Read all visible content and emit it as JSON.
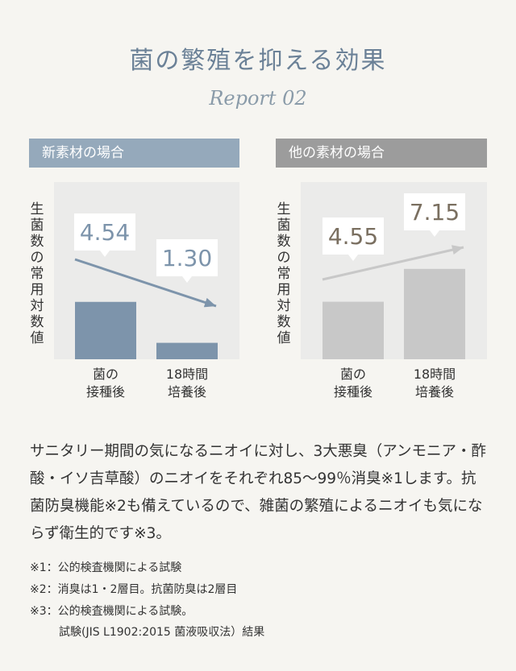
{
  "title": "菌の繁殖を抑える効果",
  "subtitle": "Report 02",
  "chart_data": [
    {
      "type": "bar",
      "title": "新素材の場合",
      "ylabel": "生菌数の常用対数値",
      "categories": [
        "菌の\n接種後",
        "18時間\n培養後"
      ],
      "values": [
        4.54,
        1.3
      ],
      "data_labels": [
        "4.54",
        "1.30"
      ],
      "color": "#7d94ab",
      "trend": "down"
    },
    {
      "type": "bar",
      "title": "他の素材の場合",
      "ylabel": "生菌数の常用対数値",
      "categories": [
        "菌の\n接種後",
        "18時間\n培養後"
      ],
      "values": [
        4.55,
        7.15
      ],
      "data_labels": [
        "4.55",
        "7.15"
      ],
      "color": "#c8c8c8",
      "trend": "up"
    }
  ],
  "xlabels": {
    "left": [
      "菌の",
      "接種後"
    ],
    "right": [
      "18時間",
      "培養後"
    ]
  },
  "body": "サニタリー期間の気になるニオイに対し、3大悪臭（アンモニア・酢酸・イソ吉草酸）のニオイをそれぞれ85〜99％消臭※1します。抗菌防臭機能※2も備えているので、雑菌の繁殖によるニオイも気にならず衛生的です※3。",
  "notes": [
    "※1：公的検査機関による試験",
    "※2：消臭は1・2層目。抗菌防臭は2層目",
    "※3：公的検査機関による試験。",
    "試験(JIS L1902:2015 菌液吸収法）結果"
  ]
}
